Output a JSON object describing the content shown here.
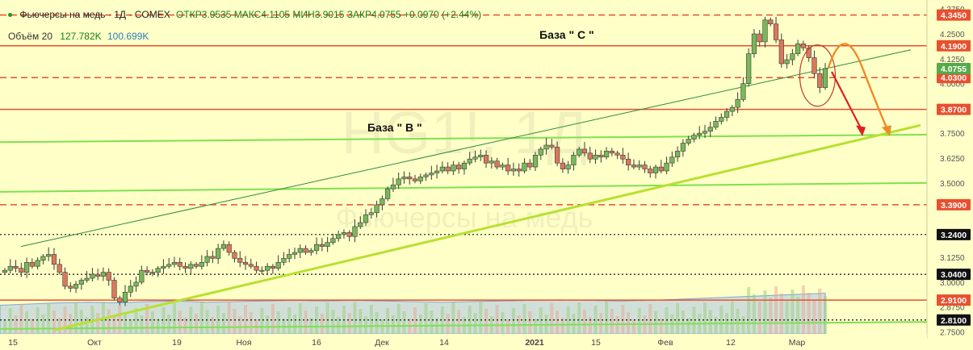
{
  "header": {
    "symbol_line": "Фьючерсы на медь · 1Д · COMEX",
    "ohlc_line": "ОТКР3.9535  МАКС4.1105  МИН3.9015  ЗАКР4.0755  +0.0970 (+2.44%)"
  },
  "volume_legend": {
    "label": "Объём 20",
    "value1": "127.782K",
    "value2": "100.699K"
  },
  "watermark": {
    "ticker": "HG1!, 1Д",
    "name": "Фьючерсы на медь"
  },
  "annotations": {
    "base_c": "База \" C \"",
    "base_b": "База \" B \""
  },
  "colors": {
    "background": "#ffffc8",
    "up_candle": "#79b85a",
    "down_candle": "#d9785c",
    "resistance_line": "#e8502f",
    "support_line": "#7fe052",
    "trend_line": "#b8e030",
    "channel_line": "#2e8b3c",
    "volume_fill": "#a9c7e8",
    "arrow_red": "#e02020",
    "arrow_orange": "#f08a24"
  },
  "chart_data": {
    "type": "candlestick",
    "title": "Фьючерсы на медь",
    "ylim": [
      2.74,
      4.38
    ],
    "x_ticks": [
      "15",
      "Окт",
      "19",
      "Ноя",
      "16",
      "Дек",
      "14",
      "2021",
      "15",
      "Фев",
      "12",
      "Мар"
    ],
    "y_ticks": [
      "4.3750",
      "4.2500",
      "4.1250",
      "4.0000",
      "3.7500",
      "3.6250",
      "3.5000",
      "3.1250",
      "3.0000",
      "2.8750",
      "2.7500"
    ],
    "price_levels": [
      {
        "value": "4.3450",
        "style": "dashed"
      },
      {
        "value": "4.1900",
        "style": "solid"
      },
      {
        "value": "4.0300",
        "style": "dashed"
      },
      {
        "value": "3.8700",
        "style": "solid"
      },
      {
        "value": "3.3900",
        "style": "dashed"
      },
      {
        "value": "3.2400",
        "style": "dotted"
      },
      {
        "value": "3.0400",
        "style": "dotted"
      },
      {
        "value": "2.9100",
        "style": "solid"
      },
      {
        "value": "2.8100",
        "style": "dotted"
      }
    ],
    "last_price": "4.0755",
    "closes": [
      3.06,
      3.08,
      3.07,
      3.05,
      3.1,
      3.08,
      3.11,
      3.13,
      3.14,
      3.09,
      3.05,
      2.98,
      2.97,
      2.99,
      3.01,
      3.02,
      3.04,
      3.03,
      3.05,
      3.01,
      2.92,
      2.9,
      2.95,
      2.98,
      3.0,
      3.06,
      3.05,
      3.05,
      3.07,
      3.08,
      3.09,
      3.1,
      3.08,
      3.07,
      3.09,
      3.08,
      3.1,
      3.13,
      3.12,
      3.17,
      3.19,
      3.15,
      3.12,
      3.1,
      3.09,
      3.08,
      3.06,
      3.06,
      3.08,
      3.07,
      3.1,
      3.12,
      3.14,
      3.15,
      3.17,
      3.15,
      3.16,
      3.19,
      3.18,
      3.2,
      3.22,
      3.24,
      3.25,
      3.23,
      3.28,
      3.3,
      3.34,
      3.35,
      3.39,
      3.42,
      3.47,
      3.49,
      3.52,
      3.53,
      3.52,
      3.51,
      3.53,
      3.54,
      3.55,
      3.56,
      3.58,
      3.56,
      3.59,
      3.57,
      3.6,
      3.62,
      3.63,
      3.64,
      3.6,
      3.61,
      3.58,
      3.59,
      3.56,
      3.57,
      3.56,
      3.6,
      3.58,
      3.64,
      3.67,
      3.69,
      3.68,
      3.6,
      3.57,
      3.59,
      3.64,
      3.67,
      3.65,
      3.62,
      3.64,
      3.63,
      3.66,
      3.65,
      3.64,
      3.62,
      3.59,
      3.58,
      3.59,
      3.57,
      3.55,
      3.58,
      3.56,
      3.6,
      3.63,
      3.66,
      3.7,
      3.72,
      3.74,
      3.75,
      3.76,
      3.78,
      3.81,
      3.83,
      3.86,
      3.88,
      3.92,
      4.0,
      4.15,
      4.25,
      4.21,
      4.32,
      4.3,
      4.22,
      4.1,
      4.12,
      4.15,
      4.2,
      4.18,
      4.13,
      4.05,
      3.98,
      4.0755
    ],
    "volume_ma": [
      0.48,
      0.5,
      0.52,
      0.53,
      0.52,
      0.54,
      0.55,
      0.53,
      0.54,
      0.55,
      0.56,
      0.55,
      0.56,
      0.55,
      0.54,
      0.53,
      0.54,
      0.55,
      0.56,
      0.57,
      0.56,
      0.55,
      0.56,
      0.58,
      0.6,
      0.62,
      0.64,
      0.66,
      0.68
    ]
  }
}
